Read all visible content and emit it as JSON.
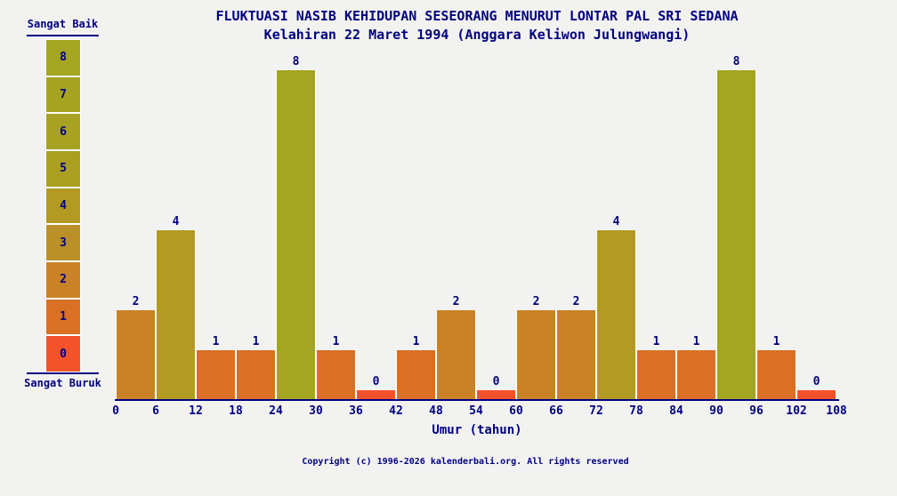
{
  "palette": {
    "background": "#f2f2f1",
    "text": "#000080",
    "axis": "#000080",
    "bar_gap": "#ffffff"
  },
  "legend": {
    "top_label": "Sangat Baik",
    "bottom_label": "Sangat Buruk",
    "levels": [
      8,
      7,
      6,
      5,
      4,
      3,
      2,
      1,
      0
    ]
  },
  "chart_data": {
    "type": "bar",
    "title": "FLUKTUASI NASIB KEHIDUPAN SESEORANG MENURUT LONTAR PAL SRI SEDANA",
    "subtitle": "Kelahiran 22 Maret 1994 (Anggara Keliwon Julungwangi)",
    "xlabel": "Umur (tahun)",
    "ylabel": "",
    "ylim": [
      0,
      8
    ],
    "grid": false,
    "bar_value_labels": true,
    "x_ticks": [
      0,
      6,
      12,
      18,
      24,
      30,
      36,
      42,
      48,
      54,
      60,
      66,
      72,
      78,
      84,
      90,
      96,
      102,
      108
    ],
    "bin_width": 6,
    "categories": [
      "0-6",
      "6-12",
      "12-18",
      "18-24",
      "24-30",
      "30-36",
      "36-42",
      "42-48",
      "48-54",
      "54-60",
      "60-66",
      "66-72",
      "72-78",
      "78-84",
      "84-90",
      "90-96",
      "96-102",
      "102-108"
    ],
    "values": [
      2,
      4,
      1,
      1,
      8,
      1,
      0,
      1,
      2,
      0,
      2,
      2,
      4,
      1,
      1,
      8,
      1,
      0
    ],
    "value_colors": {
      "0": "#f4522a",
      "1": "#d97024",
      "2": "#c98326",
      "3": "#bb9028",
      "4": "#b29a23",
      "5": "#ab9f22",
      "6": "#a8a222",
      "7": "#a6a321",
      "8": "#a4a521"
    }
  },
  "footer": {
    "copyright": "Copyright (c) 1996-2026 kalenderbali.org. All rights reserved"
  }
}
